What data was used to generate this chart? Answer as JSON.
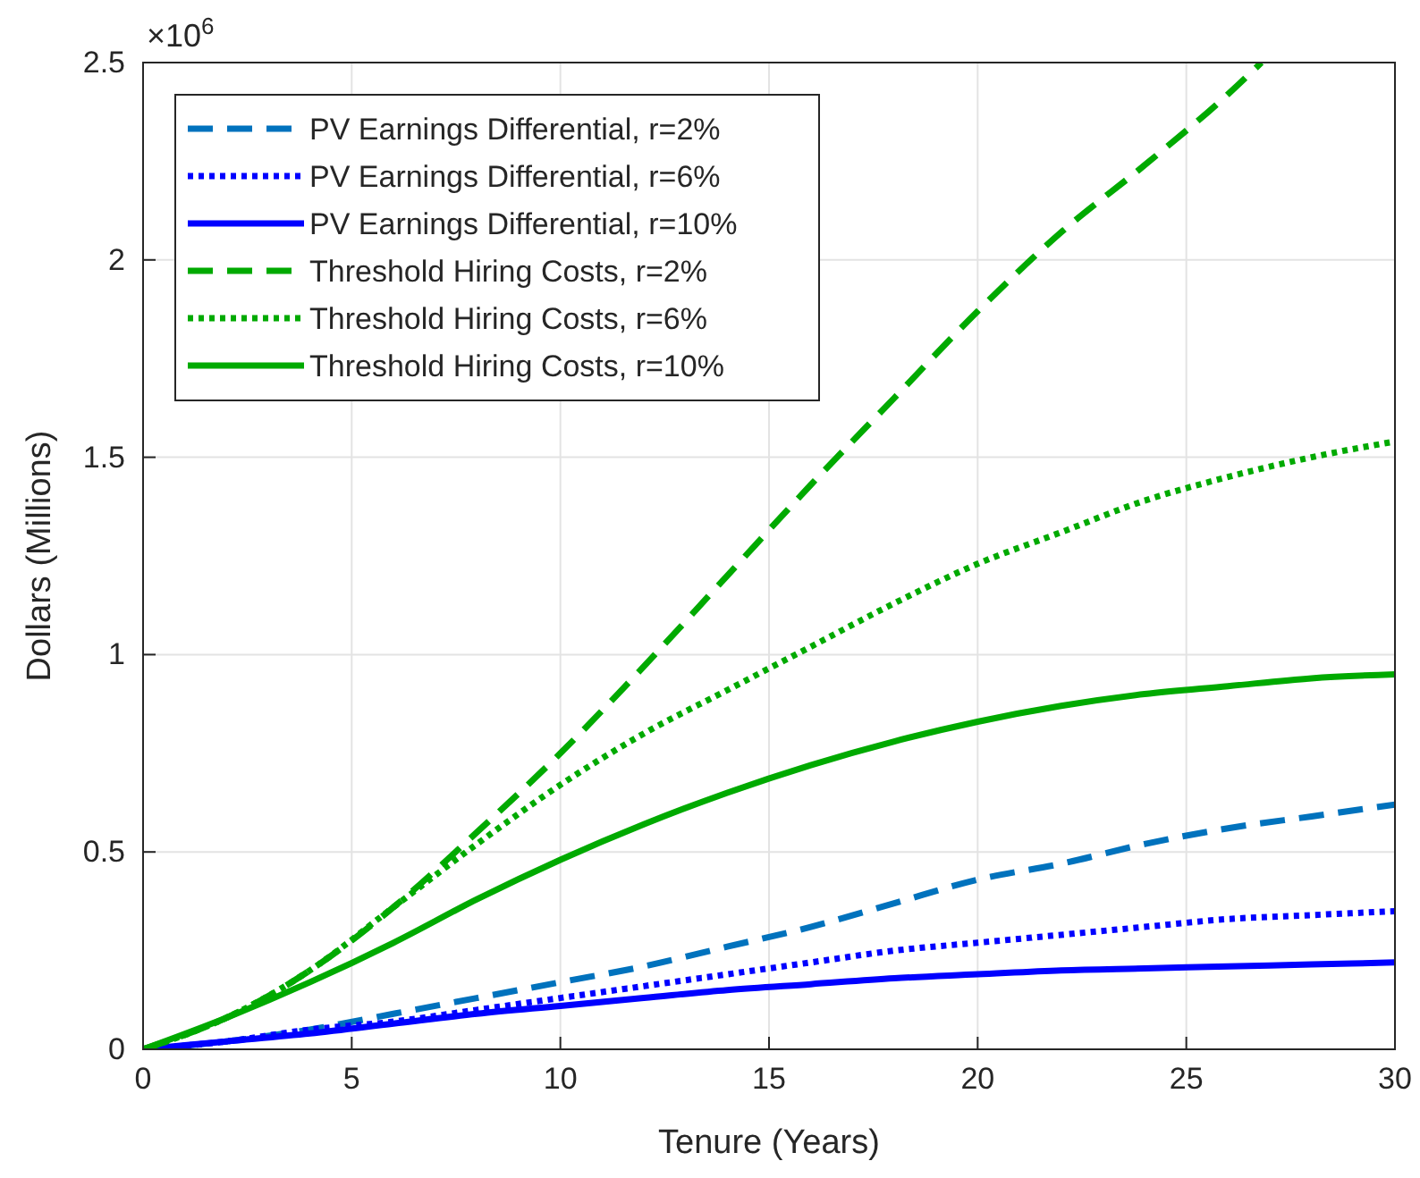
{
  "chart_data": {
    "type": "line",
    "xlabel": "Tenure (Years)",
    "ylabel": "Dollars (Millions)",
    "annotations": [
      "×10$^{6}$"
    ],
    "xlim": [
      0,
      30
    ],
    "xticks": [
      0,
      5,
      10,
      15,
      20,
      25,
      30
    ],
    "ylim": [
      0,
      2.5
    ],
    "yticks": [
      0,
      0.5,
      1,
      1.5,
      2,
      2.5
    ],
    "grid": true,
    "legend": "top left",
    "marker": "none",
    "series": [
      {
        "name": "PV Earnings Differential, r=2%",
        "color": "#0072bd",
        "line_style": "dashed",
        "x": [
          0,
          2,
          4,
          6,
          8,
          10,
          12,
          14,
          16,
          18,
          20,
          22,
          24,
          26,
          28,
          30
        ],
        "values": [
          0,
          0.02,
          0.05,
          0.09,
          0.13,
          0.17,
          0.21,
          0.26,
          0.31,
          0.37,
          0.43,
          0.47,
          0.52,
          0.56,
          0.59,
          0.62
        ]
      },
      {
        "name": "PV Earnings Differential, r=6%",
        "color": "#0000ff",
        "line_style": "dotted",
        "x": [
          0,
          2,
          4,
          6,
          8,
          10,
          12,
          14,
          16,
          18,
          20,
          22,
          24,
          26,
          28,
          30
        ],
        "values": [
          0,
          0.02,
          0.05,
          0.07,
          0.1,
          0.13,
          0.16,
          0.19,
          0.22,
          0.25,
          0.27,
          0.29,
          0.31,
          0.33,
          0.34,
          0.35
        ]
      },
      {
        "name": "PV Earnings Differential, r=10%",
        "color": "#0000ff",
        "line_style": "solid",
        "x": [
          0,
          2,
          4,
          6,
          8,
          10,
          12,
          14,
          16,
          18,
          20,
          22,
          24,
          26,
          28,
          30
        ],
        "values": [
          0,
          0.02,
          0.04,
          0.065,
          0.09,
          0.11,
          0.13,
          0.15,
          0.165,
          0.18,
          0.19,
          0.2,
          0.205,
          0.21,
          0.215,
          0.22
        ]
      },
      {
        "name": "Threshold Hiring Costs, r=2%",
        "color": "#00aa00",
        "line_style": "dashed",
        "x": [
          0,
          2,
          4,
          6,
          8,
          10,
          12,
          14,
          16,
          18,
          20,
          22,
          24,
          26,
          26.8
        ],
        "values": [
          0,
          0.08,
          0.2,
          0.36,
          0.55,
          0.75,
          0.97,
          1.2,
          1.43,
          1.65,
          1.87,
          2.07,
          2.24,
          2.42,
          2.5
        ]
      },
      {
        "name": "Threshold Hiring Costs, r=6%",
        "color": "#00aa00",
        "line_style": "dotted",
        "x": [
          0,
          2,
          4,
          6,
          8,
          10,
          12,
          14,
          16,
          18,
          20,
          22,
          24,
          26,
          28,
          30
        ],
        "values": [
          0,
          0.08,
          0.2,
          0.36,
          0.52,
          0.67,
          0.8,
          0.91,
          1.02,
          1.13,
          1.23,
          1.31,
          1.39,
          1.45,
          1.5,
          1.54
        ]
      },
      {
        "name": "Threshold Hiring Costs, r=10%",
        "color": "#00aa00",
        "line_style": "solid",
        "x": [
          0,
          2,
          4,
          6,
          8,
          10,
          12,
          14,
          16,
          18,
          20,
          22,
          24,
          26,
          28,
          30
        ],
        "values": [
          0,
          0.08,
          0.17,
          0.27,
          0.38,
          0.48,
          0.57,
          0.65,
          0.72,
          0.78,
          0.83,
          0.87,
          0.9,
          0.92,
          0.94,
          0.95
        ]
      }
    ]
  }
}
